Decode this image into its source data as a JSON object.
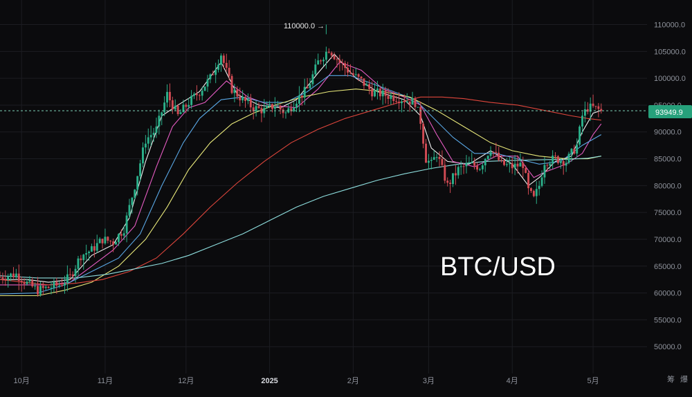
{
  "title": "BTC/USD",
  "corner_icons": [
    "筹",
    "爆"
  ],
  "current_price_label": "93949.9",
  "ath_label": "110000.0 →",
  "colors": {
    "background": "#0b0b0d",
    "grid": "#1c1d22",
    "up": "#2bb08a",
    "down": "#d24b54",
    "price_tag": "#26a17b",
    "ma_white": "#f2f2f2",
    "ma_pink": "#e65cc3",
    "ma_blue": "#5aa8e6",
    "ma_yellow": "#e8e87a",
    "ma_red": "#e0463c",
    "ma_cyan": "#8fe0e0"
  },
  "chart_data": {
    "type": "candlestick",
    "symbol": "BTC/USD",
    "ylim": [
      45000,
      112000
    ],
    "yticks": [
      "110000.0",
      "105000.0",
      "100000.0",
      "95000.0",
      "90000.0",
      "85000.0",
      "80000.0",
      "75000.0",
      "70000.0",
      "65000.0",
      "60000.0",
      "55000.0",
      "50000.0"
    ],
    "ytick_values": [
      110000,
      105000,
      100000,
      95000,
      90000,
      85000,
      80000,
      75000,
      70000,
      65000,
      60000,
      55000,
      50000
    ],
    "xticks": [
      {
        "label": "10月",
        "day": 4,
        "bold": false
      },
      {
        "label": "11月",
        "day": 35,
        "bold": false
      },
      {
        "label": "12月",
        "day": 65,
        "bold": false
      },
      {
        "label": "2025",
        "day": 96,
        "bold": true
      },
      {
        "label": "2月",
        "day": 127,
        "bold": false
      },
      {
        "label": "3月",
        "day": 155,
        "bold": false
      },
      {
        "label": "4月",
        "day": 186,
        "bold": false
      },
      {
        "label": "5月",
        "day": 216,
        "bold": false
      }
    ],
    "day_range": [
      -4,
      236
    ],
    "ath": 110000,
    "last_price": 93949.9,
    "anchors": [
      [
        -4,
        63000
      ],
      [
        2,
        63500
      ],
      [
        6,
        61800
      ],
      [
        10,
        60500
      ],
      [
        14,
        61000
      ],
      [
        18,
        61500
      ],
      [
        22,
        63000
      ],
      [
        26,
        67000
      ],
      [
        30,
        68000
      ],
      [
        34,
        70000
      ],
      [
        38,
        69500
      ],
      [
        42,
        72000
      ],
      [
        46,
        80000
      ],
      [
        50,
        88500
      ],
      [
        54,
        90500
      ],
      [
        58,
        97000
      ],
      [
        62,
        93000
      ],
      [
        66,
        95500
      ],
      [
        70,
        97500
      ],
      [
        74,
        100000
      ],
      [
        78,
        104500
      ],
      [
        82,
        98000
      ],
      [
        86,
        96000
      ],
      [
        90,
        94500
      ],
      [
        94,
        94000
      ],
      [
        98,
        95000
      ],
      [
        102,
        93500
      ],
      [
        106,
        96000
      ],
      [
        110,
        98000
      ],
      [
        114,
        103000
      ],
      [
        118,
        105500
      ],
      [
        122,
        103000
      ],
      [
        126,
        101000
      ],
      [
        130,
        99500
      ],
      [
        134,
        97500
      ],
      [
        138,
        97000
      ],
      [
        142,
        96500
      ],
      [
        146,
        96000
      ],
      [
        150,
        95500
      ],
      [
        152,
        92000
      ],
      [
        154,
        85000
      ],
      [
        156,
        84000
      ],
      [
        158,
        86000
      ],
      [
        162,
        80000
      ],
      [
        166,
        83000
      ],
      [
        170,
        84000
      ],
      [
        174,
        83500
      ],
      [
        178,
        87000
      ],
      [
        182,
        84000
      ],
      [
        186,
        83500
      ],
      [
        190,
        84000
      ],
      [
        192,
        79000
      ],
      [
        194,
        77500
      ],
      [
        196,
        80000
      ],
      [
        198,
        84500
      ],
      [
        202,
        85000
      ],
      [
        206,
        84500
      ],
      [
        210,
        87500
      ],
      [
        212,
        93000
      ],
      [
        214,
        94500
      ],
      [
        216,
        94500
      ],
      [
        219,
        93949.9
      ]
    ],
    "moving_averages": [
      {
        "color_key": "ma_white",
        "points": [
          [
            -4,
            62500
          ],
          [
            6,
            62500
          ],
          [
            14,
            62000
          ],
          [
            22,
            62500
          ],
          [
            30,
            67000
          ],
          [
            38,
            69000
          ],
          [
            44,
            74000
          ],
          [
            50,
            84500
          ],
          [
            56,
            93000
          ],
          [
            62,
            95000
          ],
          [
            70,
            97500
          ],
          [
            78,
            103000
          ],
          [
            84,
            97000
          ],
          [
            92,
            95000
          ],
          [
            100,
            94500
          ],
          [
            106,
            96000
          ],
          [
            114,
            101000
          ],
          [
            120,
            104500
          ],
          [
            128,
            100000
          ],
          [
            136,
            97500
          ],
          [
            146,
            96000
          ],
          [
            152,
            93000
          ],
          [
            156,
            87000
          ],
          [
            162,
            84500
          ],
          [
            170,
            84000
          ],
          [
            178,
            86500
          ],
          [
            186,
            84000
          ],
          [
            192,
            80000
          ],
          [
            196,
            81500
          ],
          [
            202,
            84500
          ],
          [
            208,
            85500
          ],
          [
            212,
            90000
          ],
          [
            216,
            93500
          ],
          [
            219,
            94000
          ]
        ]
      },
      {
        "color_key": "ma_pink",
        "points": [
          [
            -4,
            61500
          ],
          [
            6,
            61500
          ],
          [
            14,
            61500
          ],
          [
            22,
            62000
          ],
          [
            30,
            65000
          ],
          [
            38,
            68000
          ],
          [
            46,
            72500
          ],
          [
            54,
            83500
          ],
          [
            60,
            91000
          ],
          [
            66,
            94500
          ],
          [
            72,
            95500
          ],
          [
            80,
            99500
          ],
          [
            88,
            96500
          ],
          [
            96,
            95000
          ],
          [
            106,
            94500
          ],
          [
            114,
            98000
          ],
          [
            122,
            103000
          ],
          [
            130,
            101500
          ],
          [
            138,
            98000
          ],
          [
            146,
            96500
          ],
          [
            152,
            95000
          ],
          [
            158,
            89500
          ],
          [
            164,
            84500
          ],
          [
            172,
            83500
          ],
          [
            180,
            85500
          ],
          [
            188,
            85500
          ],
          [
            194,
            81500
          ],
          [
            198,
            82500
          ],
          [
            206,
            84000
          ],
          [
            212,
            86000
          ],
          [
            216,
            89500
          ],
          [
            219,
            91500
          ]
        ]
      },
      {
        "color_key": "ma_blue",
        "points": [
          [
            -4,
            59800
          ],
          [
            10,
            60000
          ],
          [
            20,
            61500
          ],
          [
            30,
            64000
          ],
          [
            40,
            66500
          ],
          [
            48,
            71000
          ],
          [
            56,
            80000
          ],
          [
            64,
            88000
          ],
          [
            70,
            92500
          ],
          [
            78,
            96000
          ],
          [
            86,
            96500
          ],
          [
            94,
            95500
          ],
          [
            102,
            95500
          ],
          [
            110,
            97500
          ],
          [
            118,
            100500
          ],
          [
            126,
            100500
          ],
          [
            134,
            99000
          ],
          [
            142,
            97500
          ],
          [
            150,
            96000
          ],
          [
            156,
            93000
          ],
          [
            164,
            89000
          ],
          [
            172,
            86000
          ],
          [
            180,
            86000
          ],
          [
            188,
            85000
          ],
          [
            196,
            84000
          ],
          [
            204,
            84500
          ],
          [
            212,
            87500
          ],
          [
            219,
            89500
          ]
        ]
      },
      {
        "color_key": "ma_yellow",
        "points": [
          [
            -4,
            59500
          ],
          [
            10,
            59500
          ],
          [
            20,
            60500
          ],
          [
            30,
            62000
          ],
          [
            40,
            65000
          ],
          [
            50,
            70000
          ],
          [
            58,
            76000
          ],
          [
            66,
            83000
          ],
          [
            74,
            88000
          ],
          [
            82,
            91500
          ],
          [
            90,
            93500
          ],
          [
            98,
            95000
          ],
          [
            108,
            96500
          ],
          [
            118,
            97500
          ],
          [
            128,
            98000
          ],
          [
            138,
            97500
          ],
          [
            148,
            96500
          ],
          [
            158,
            94000
          ],
          [
            168,
            91000
          ],
          [
            178,
            88000
          ],
          [
            186,
            86500
          ],
          [
            196,
            85500
          ],
          [
            206,
            85000
          ],
          [
            214,
            85000
          ],
          [
            219,
            85500
          ]
        ]
      },
      {
        "color_key": "ma_red",
        "points": [
          [
            -4,
            62500
          ],
          [
            14,
            61500
          ],
          [
            24,
            61800
          ],
          [
            34,
            62500
          ],
          [
            44,
            64000
          ],
          [
            54,
            66500
          ],
          [
            64,
            71000
          ],
          [
            74,
            76000
          ],
          [
            84,
            80500
          ],
          [
            94,
            84500
          ],
          [
            104,
            88000
          ],
          [
            114,
            90500
          ],
          [
            124,
            92500
          ],
          [
            134,
            94000
          ],
          [
            144,
            95500
          ],
          [
            152,
            96500
          ],
          [
            160,
            96500
          ],
          [
            168,
            96200
          ],
          [
            178,
            95500
          ],
          [
            188,
            95000
          ],
          [
            198,
            94000
          ],
          [
            208,
            93000
          ],
          [
            214,
            92500
          ],
          [
            219,
            92200
          ]
        ]
      },
      {
        "color_key": "ma_cyan",
        "points": [
          [
            -4,
            63200
          ],
          [
            10,
            62800
          ],
          [
            24,
            62800
          ],
          [
            36,
            63500
          ],
          [
            46,
            64500
          ],
          [
            56,
            65500
          ],
          [
            66,
            67000
          ],
          [
            76,
            69000
          ],
          [
            86,
            71000
          ],
          [
            96,
            73500
          ],
          [
            106,
            76000
          ],
          [
            116,
            78000
          ],
          [
            126,
            79500
          ],
          [
            136,
            81000
          ],
          [
            146,
            82200
          ],
          [
            156,
            83200
          ],
          [
            166,
            84000
          ],
          [
            176,
            84500
          ],
          [
            186,
            84700
          ],
          [
            196,
            84800
          ],
          [
            206,
            84900
          ],
          [
            214,
            85100
          ],
          [
            219,
            85500
          ]
        ]
      }
    ]
  }
}
